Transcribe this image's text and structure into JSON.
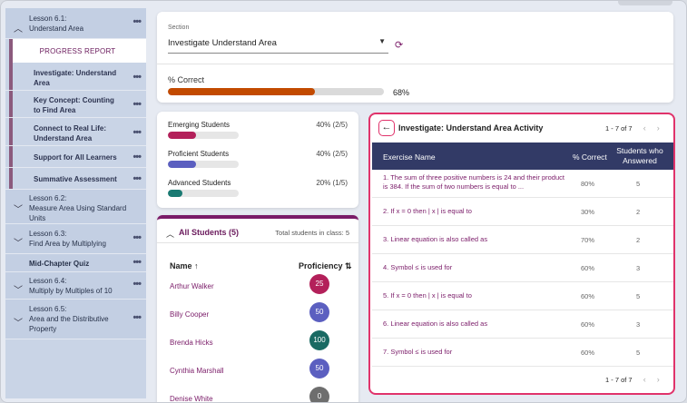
{
  "sidebar": {
    "items": [
      {
        "label": "Lesson 6.1:\nUnderstand Area",
        "chevron": "up",
        "type": "lesson"
      },
      {
        "label": "PROGRESS REPORT",
        "type": "progress"
      },
      {
        "label": "Investigate: Understand Area",
        "type": "sub"
      },
      {
        "label": "Key Concept: Counting to Find Area",
        "type": "sub"
      },
      {
        "label": "Connect to Real Life: Understand Area",
        "type": "sub"
      },
      {
        "label": "Support for All Learners",
        "type": "sub"
      },
      {
        "label": "Summative Assessment",
        "type": "sub"
      },
      {
        "label": "Lesson 6.2:\nMeasure Area Using Standard Units",
        "chevron": "down",
        "type": "lesson"
      },
      {
        "label": "Lesson 6.3:\nFind Area by Multiplying",
        "chevron": "down",
        "type": "lesson"
      },
      {
        "label": "Mid-Chapter Quiz",
        "type": "quiz"
      },
      {
        "label": "Lesson 6.4:\nMultiply by Multiples of 10",
        "chevron": "down",
        "type": "lesson"
      },
      {
        "label": "Lesson 6.5:\nArea and the Distributive Property",
        "chevron": "down",
        "type": "lesson"
      }
    ],
    "more_icon": "•••"
  },
  "section": {
    "caption": "Section",
    "value": "Investigate Understand Area",
    "dropdown_icon": "▼",
    "refresh_icon": "⟳"
  },
  "percent_correct": {
    "label": "% Correct",
    "value": 68,
    "value_text": "68%",
    "color": "#c24a00"
  },
  "groups": [
    {
      "name": "Emerging Students",
      "value_text": "40% (2/5)",
      "fraction": 0.4,
      "color": "#b3205a"
    },
    {
      "name": "Proficient Students",
      "value_text": "40% (2/5)",
      "fraction": 0.4,
      "color": "#5b5fc0"
    },
    {
      "name": "Advanced Students",
      "value_text": "20% (1/5)",
      "fraction": 0.2,
      "color": "#1a7a72"
    }
  ],
  "students": {
    "title": "All Students (5)",
    "total_text": "Total students in class: 5",
    "col_name": "Name ↑",
    "col_proficiency": "Proficiency ⇅",
    "rows": [
      {
        "name": "Arthur Walker",
        "score": "25",
        "color": "#b3205a"
      },
      {
        "name": "Billy Cooper",
        "score": "50",
        "color": "#5b5fc0"
      },
      {
        "name": "Brenda Hicks",
        "score": "100",
        "color": "#1a6a63"
      },
      {
        "name": "Cynthia Marshall",
        "score": "50",
        "color": "#5b5fc0"
      },
      {
        "name": "Denise White",
        "score": "0",
        "color": "#6e6e6e"
      }
    ]
  },
  "activity": {
    "back_icon": "←",
    "title": "Investigate: Understand Area Activity",
    "pager_text": "1 - 7 of 7",
    "prev_icon": "‹",
    "next_icon": "›",
    "headers": {
      "exercise": "Exercise Name",
      "correct": "% Correct",
      "answered": "Students who Answered"
    },
    "rows": [
      {
        "q": "1. The sum of three positive numbers is 24 and their product is 384. If the sum of two numbers is equal to ...",
        "pct": "80%",
        "ans": "5",
        "multiline": true
      },
      {
        "q": "2. If x = 0 then | x | is equal to",
        "pct": "30%",
        "ans": "2",
        "multiline": false
      },
      {
        "q": "3. Linear equation is also called as",
        "pct": "70%",
        "ans": "2",
        "multiline": false
      },
      {
        "q": "4. Symbol ≤ is used for",
        "pct": "60%",
        "ans": "3",
        "multiline": false
      },
      {
        "q": "5. If x = 0 then | x | is equal to",
        "pct": "60%",
        "ans": "5",
        "multiline": false
      },
      {
        "q": "6. Linear equation is also called as",
        "pct": "60%",
        "ans": "3",
        "multiline": false
      },
      {
        "q": "7. Symbol ≤ is used for",
        "pct": "60%",
        "ans": "5",
        "multiline": false
      }
    ],
    "pager_bottom_text": "1 - 7 of 7"
  }
}
